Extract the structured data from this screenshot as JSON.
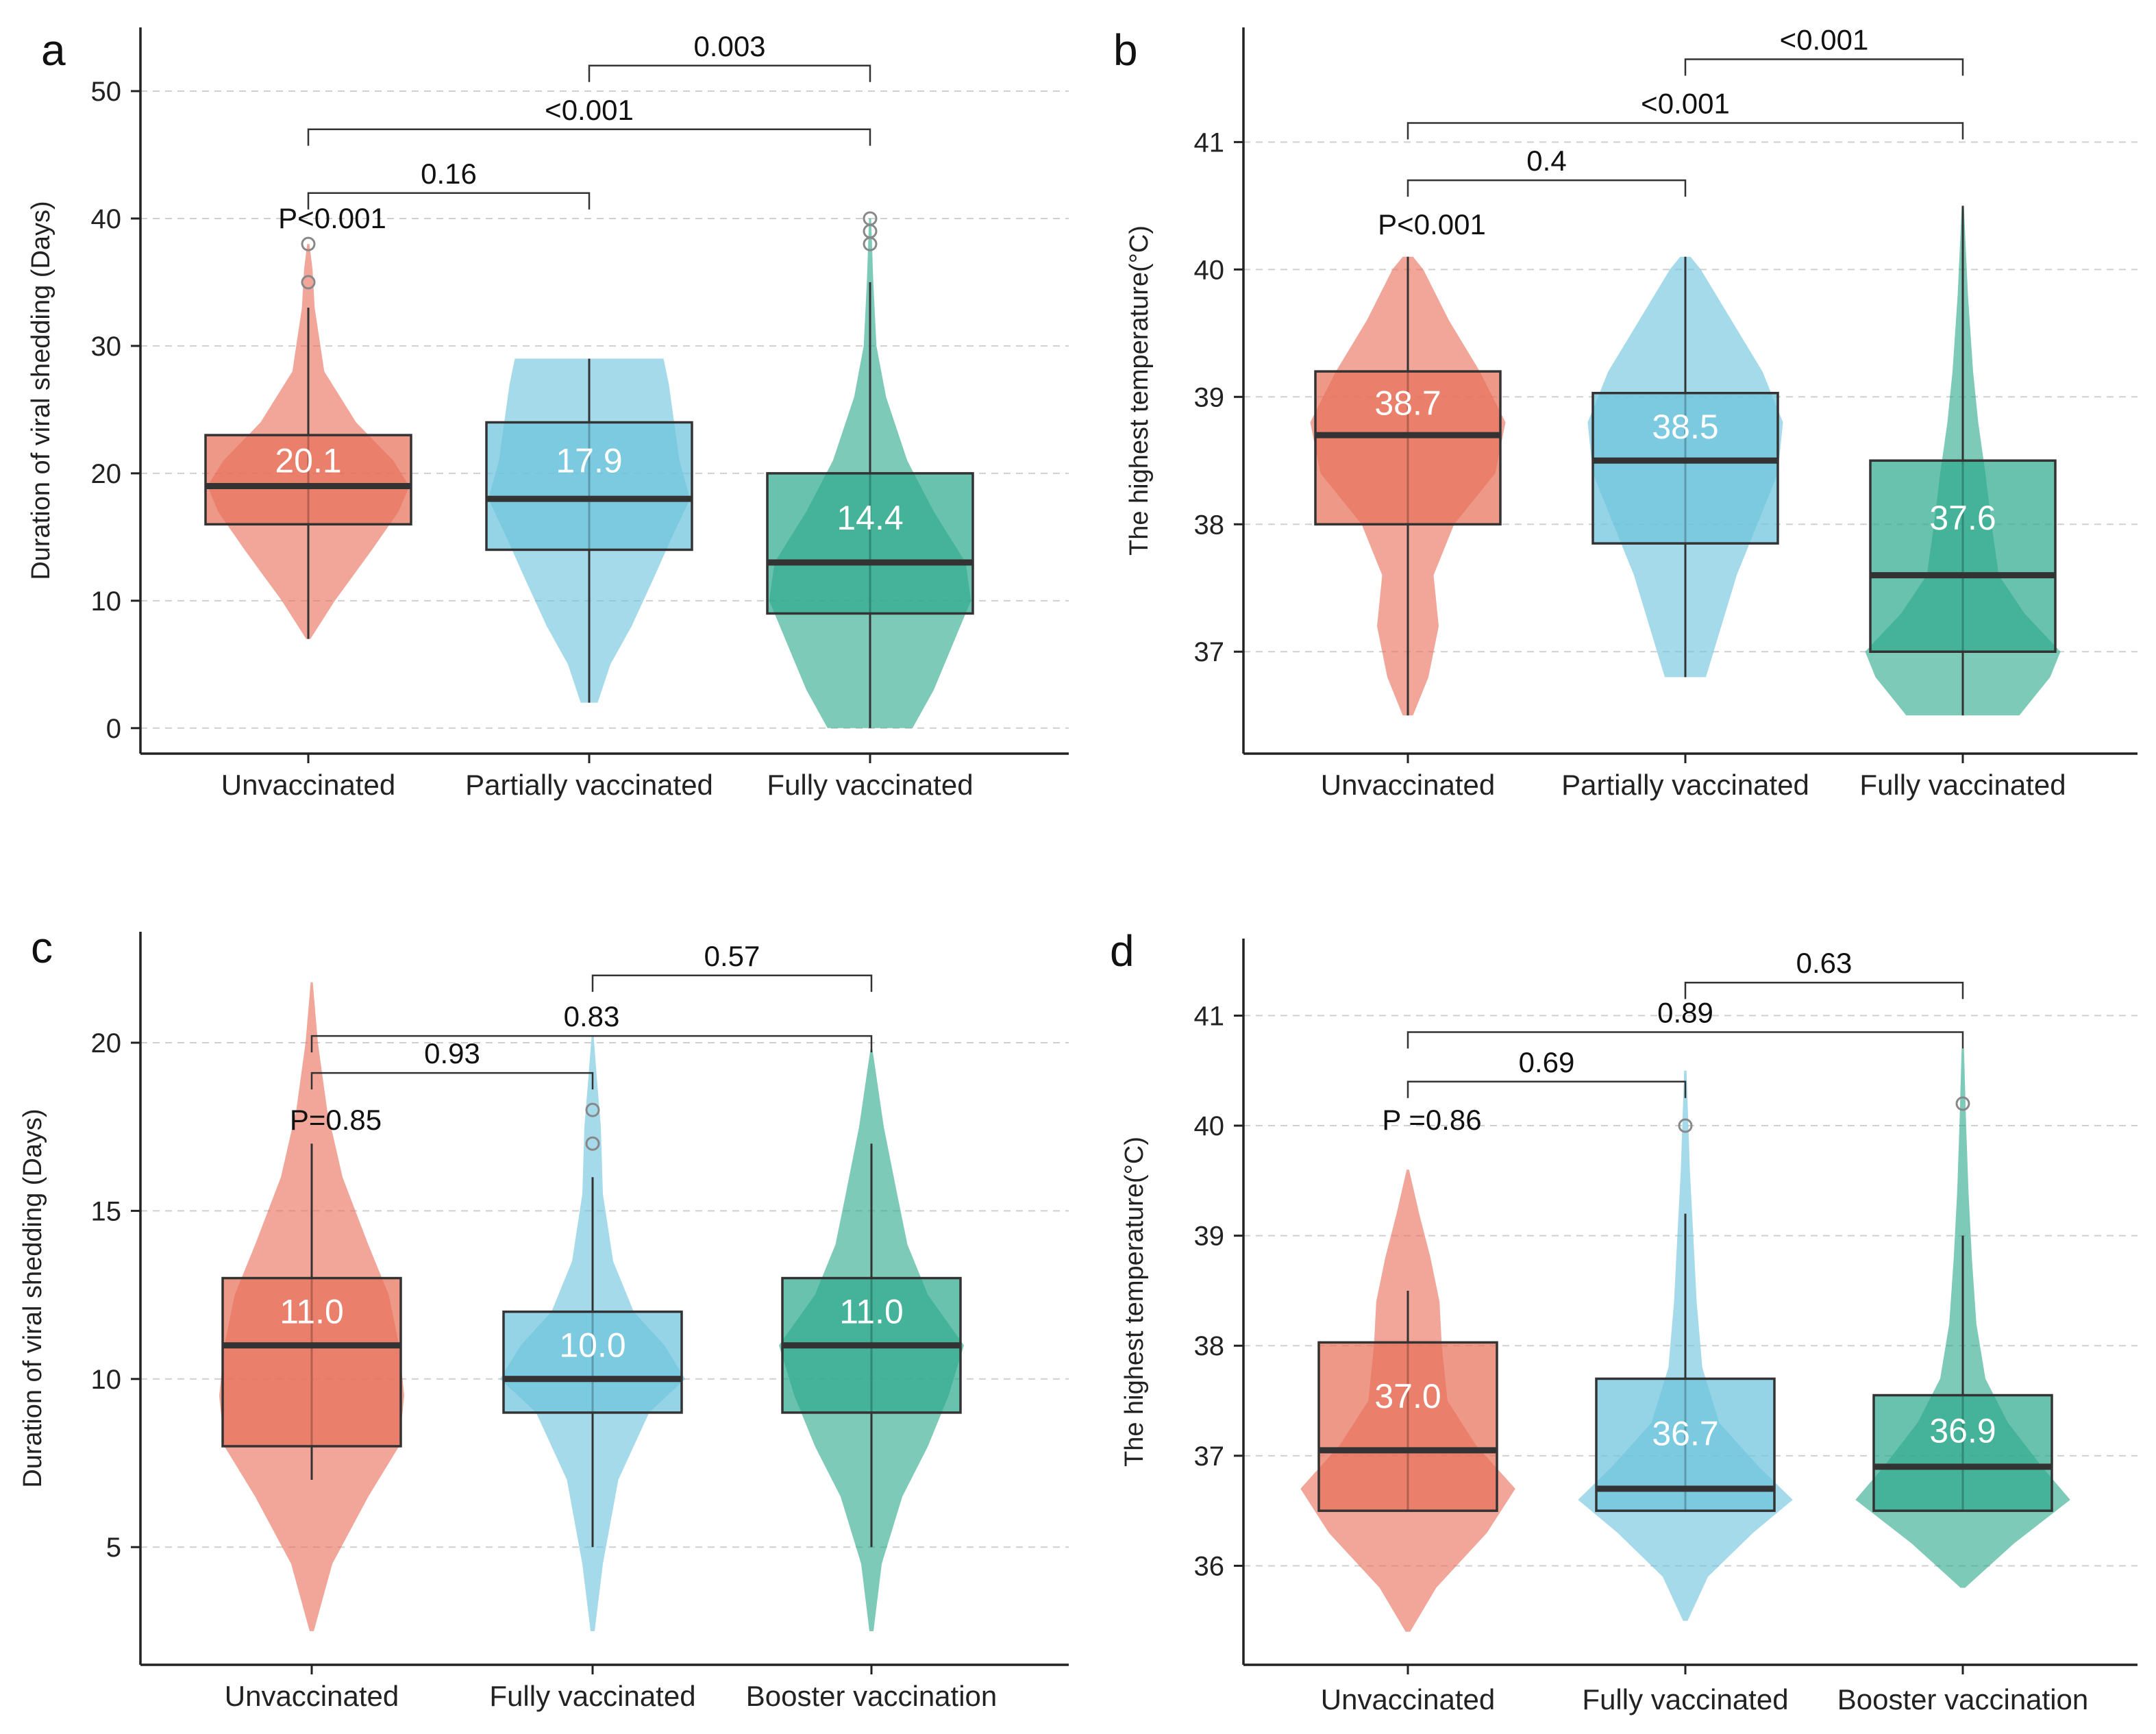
{
  "chart_data": [
    {
      "type": "violin-box",
      "panel": "a",
      "ylabel": "Duration of viral shedding (Days)",
      "ylim": [
        -2,
        55
      ],
      "yticks": [
        0,
        10,
        20,
        30,
        40,
        50
      ],
      "groups": [
        {
          "name": "Unvaccinated",
          "color": "#E8705A",
          "violin_min": 7,
          "violin_max": 38,
          "violin_profile": [
            [
              7,
              0.02
            ],
            [
              10,
              0.25
            ],
            [
              14,
              0.6
            ],
            [
              17,
              0.85
            ],
            [
              19,
              0.95
            ],
            [
              21,
              0.8
            ],
            [
              24,
              0.45
            ],
            [
              28,
              0.15
            ],
            [
              33,
              0.06
            ],
            [
              36,
              0.04
            ],
            [
              38,
              0.01
            ]
          ],
          "whisker_low": 7,
          "q1": 16,
          "median": 19,
          "q3": 23,
          "whisker_high": 33,
          "mean_label": "20.1",
          "outliers": [
            35,
            38
          ]
        },
        {
          "name": "Partially vaccinated",
          "color": "#6CC3DD",
          "violin_min": 2,
          "violin_max": 29,
          "violin_profile": [
            [
              2,
              0.08
            ],
            [
              5,
              0.2
            ],
            [
              8,
              0.4
            ],
            [
              12,
              0.62
            ],
            [
              15,
              0.78
            ],
            [
              18,
              0.95
            ],
            [
              21,
              0.85
            ],
            [
              24,
              0.8
            ],
            [
              27,
              0.75
            ],
            [
              29,
              0.7
            ]
          ],
          "whisker_low": 2,
          "q1": 14,
          "median": 18,
          "q3": 24,
          "whisker_high": 29,
          "mean_label": "17.9",
          "outliers": []
        },
        {
          "name": "Fully vaccinated",
          "color": "#2EAA8E",
          "violin_min": 0,
          "violin_max": 40,
          "violin_profile": [
            [
              0,
              0.4
            ],
            [
              3,
              0.6
            ],
            [
              7,
              0.8
            ],
            [
              10,
              0.95
            ],
            [
              13,
              0.9
            ],
            [
              17,
              0.6
            ],
            [
              21,
              0.35
            ],
            [
              26,
              0.15
            ],
            [
              30,
              0.06
            ],
            [
              35,
              0.03
            ],
            [
              40,
              0.01
            ]
          ],
          "whisker_low": 0,
          "q1": 9,
          "median": 13,
          "q3": 20,
          "whisker_high": 35,
          "mean_label": "14.4",
          "outliers": [
            38,
            39,
            40
          ]
        }
      ],
      "comparisons": [
        {
          "from": 0,
          "to": 2,
          "y": 47,
          "label": "<0.001"
        },
        {
          "from": 0,
          "to": 1,
          "y": 42,
          "label": "0.16"
        },
        {
          "from": 1,
          "to": 2,
          "y": 52,
          "label": "0.003"
        }
      ],
      "overall_p": {
        "label": "P<0.001",
        "group": 0,
        "y": 40
      }
    },
    {
      "type": "violin-box",
      "panel": "b",
      "ylabel": "The highest temperature(°C)",
      "ylim": [
        36.2,
        41.9
      ],
      "yticks": [
        37,
        38,
        39,
        40,
        41
      ],
      "groups": [
        {
          "name": "Unvaccinated",
          "color": "#E8705A",
          "violin_min": 36.5,
          "violin_max": 40.1,
          "violin_profile": [
            [
              36.5,
              0.05
            ],
            [
              36.8,
              0.2
            ],
            [
              37.2,
              0.3
            ],
            [
              37.6,
              0.25
            ],
            [
              38.0,
              0.45
            ],
            [
              38.4,
              0.85
            ],
            [
              38.8,
              0.95
            ],
            [
              39.2,
              0.7
            ],
            [
              39.6,
              0.4
            ],
            [
              40.0,
              0.15
            ],
            [
              40.1,
              0.05
            ]
          ],
          "whisker_low": 36.5,
          "q1": 38.0,
          "median": 38.7,
          "q3": 39.2,
          "whisker_high": 40.1,
          "mean_label": "38.7",
          "outliers": []
        },
        {
          "name": "Partially vaccinated",
          "color": "#6CC3DD",
          "violin_min": 36.8,
          "violin_max": 40.1,
          "violin_profile": [
            [
              36.8,
              0.2
            ],
            [
              37.2,
              0.35
            ],
            [
              37.6,
              0.5
            ],
            [
              38.0,
              0.7
            ],
            [
              38.4,
              0.9
            ],
            [
              38.8,
              0.95
            ],
            [
              39.2,
              0.75
            ],
            [
              39.6,
              0.45
            ],
            [
              40.0,
              0.15
            ],
            [
              40.1,
              0.05
            ]
          ],
          "whisker_low": 36.8,
          "q1": 37.85,
          "median": 38.5,
          "q3": 39.03,
          "whisker_high": 40.1,
          "mean_label": "38.5",
          "outliers": []
        },
        {
          "name": "Fully vaccinated",
          "color": "#2EAA8E",
          "violin_min": 36.5,
          "violin_max": 40.5,
          "violin_profile": [
            [
              36.5,
              0.55
            ],
            [
              36.8,
              0.85
            ],
            [
              37.0,
              0.95
            ],
            [
              37.3,
              0.6
            ],
            [
              37.6,
              0.35
            ],
            [
              38.0,
              0.28
            ],
            [
              38.4,
              0.22
            ],
            [
              38.8,
              0.15
            ],
            [
              39.2,
              0.1
            ],
            [
              39.8,
              0.05
            ],
            [
              40.5,
              0.01
            ]
          ],
          "whisker_low": 36.5,
          "q1": 37.0,
          "median": 37.6,
          "q3": 38.5,
          "whisker_high": 40.5,
          "mean_label": "37.6",
          "outliers": []
        }
      ],
      "comparisons": [
        {
          "from": 0,
          "to": 2,
          "y": 41.15,
          "label": "<0.001"
        },
        {
          "from": 0,
          "to": 1,
          "y": 40.7,
          "label": "0.4"
        },
        {
          "from": 1,
          "to": 2,
          "y": 41.65,
          "label": "<0.001"
        }
      ],
      "overall_p": {
        "label": "P<0.001",
        "group": 0,
        "y": 40.35
      }
    },
    {
      "type": "violin-box",
      "panel": "c",
      "ylabel": "Duration of viral shedding (Days)",
      "ylim": [
        1.5,
        23.3
      ],
      "yticks": [
        5,
        10,
        15,
        20
      ],
      "groups": [
        {
          "name": "Unvaccinated",
          "color": "#E8705A",
          "violin_min": 2.5,
          "violin_max": 21.8,
          "violin_profile": [
            [
              2.5,
              0.02
            ],
            [
              4.5,
              0.2
            ],
            [
              6.5,
              0.55
            ],
            [
              8,
              0.85
            ],
            [
              9.5,
              0.9
            ],
            [
              11,
              0.85
            ],
            [
              12.5,
              0.75
            ],
            [
              14,
              0.55
            ],
            [
              16,
              0.3
            ],
            [
              18,
              0.15
            ],
            [
              20,
              0.06
            ],
            [
              21.8,
              0.01
            ]
          ],
          "whisker_low": 7,
          "q1": 8,
          "median": 11,
          "q3": 13,
          "whisker_high": 17,
          "mean_label": "11.0",
          "outliers": []
        },
        {
          "name": "Fully vaccinated",
          "color": "#6CC3DD",
          "violin_min": 2.5,
          "violin_max": 20.2,
          "violin_profile": [
            [
              2.5,
              0.02
            ],
            [
              4.5,
              0.1
            ],
            [
              7,
              0.25
            ],
            [
              9,
              0.55
            ],
            [
              10,
              0.9
            ],
            [
              11,
              0.7
            ],
            [
              12,
              0.4
            ],
            [
              13.5,
              0.2
            ],
            [
              15.5,
              0.1
            ],
            [
              17.5,
              0.08
            ],
            [
              19,
              0.04
            ],
            [
              20.2,
              0.01
            ]
          ],
          "whisker_low": 5,
          "q1": 9,
          "median": 10,
          "q3": 12,
          "whisker_high": 16,
          "mean_label": "10.0",
          "outliers": [
            17,
            18
          ]
        },
        {
          "name": "Booster vaccination",
          "color": "#2EAA8E",
          "violin_min": 2.5,
          "violin_max": 19.8,
          "violin_profile": [
            [
              2.5,
              0.02
            ],
            [
              4.5,
              0.1
            ],
            [
              6.5,
              0.3
            ],
            [
              8,
              0.55
            ],
            [
              9.5,
              0.75
            ],
            [
              11,
              0.9
            ],
            [
              12.5,
              0.55
            ],
            [
              14,
              0.35
            ],
            [
              15.5,
              0.25
            ],
            [
              17.5,
              0.12
            ],
            [
              19.8,
              0.01
            ]
          ],
          "whisker_low": 5,
          "q1": 9,
          "median": 11,
          "q3": 13,
          "whisker_high": 17,
          "mean_label": "11.0",
          "outliers": []
        }
      ],
      "comparisons": [
        {
          "from": 0,
          "to": 2,
          "y": 20.2,
          "label": "0.83"
        },
        {
          "from": 0,
          "to": 1,
          "y": 19.1,
          "label": "0.93"
        },
        {
          "from": 1,
          "to": 2,
          "y": 22.0,
          "label": "0.57"
        }
      ],
      "overall_p": {
        "label": "P=0.85",
        "group": 0,
        "y": 17.7
      }
    },
    {
      "type": "violin-box",
      "panel": "d",
      "ylabel": "The highest temperature(°C)",
      "ylim": [
        35.1,
        41.7
      ],
      "yticks": [
        36,
        37,
        38,
        39,
        40,
        41
      ],
      "groups": [
        {
          "name": "Unvaccinated",
          "color": "#E8705A",
          "violin_min": 35.4,
          "violin_max": 39.6,
          "violin_profile": [
            [
              35.4,
              0.02
            ],
            [
              35.8,
              0.25
            ],
            [
              36.3,
              0.7
            ],
            [
              36.7,
              0.95
            ],
            [
              37.1,
              0.6
            ],
            [
              37.5,
              0.35
            ],
            [
              38.0,
              0.3
            ],
            [
              38.4,
              0.28
            ],
            [
              38.8,
              0.2
            ],
            [
              39.2,
              0.1
            ],
            [
              39.6,
              0.01
            ]
          ],
          "whisker_low": 36.5,
          "q1": 36.5,
          "median": 37.05,
          "q3": 38.03,
          "whisker_high": 38.5,
          "mean_label": "37.0",
          "outliers": []
        },
        {
          "name": "Fully vaccinated",
          "color": "#6CC3DD",
          "violin_min": 35.5,
          "violin_max": 40.5,
          "violin_profile": [
            [
              35.5,
              0.02
            ],
            [
              35.9,
              0.2
            ],
            [
              36.3,
              0.6
            ],
            [
              36.6,
              0.95
            ],
            [
              36.9,
              0.65
            ],
            [
              37.3,
              0.3
            ],
            [
              37.8,
              0.15
            ],
            [
              38.4,
              0.1
            ],
            [
              39.0,
              0.07
            ],
            [
              39.6,
              0.04
            ],
            [
              40.5,
              0.01
            ]
          ],
          "whisker_low": 36.5,
          "q1": 36.5,
          "median": 36.7,
          "q3": 37.7,
          "whisker_high": 39.2,
          "mean_label": "36.7",
          "outliers": [
            40.0
          ]
        },
        {
          "name": "Booster vaccination",
          "color": "#2EAA8E",
          "violin_min": 35.8,
          "violin_max": 40.7,
          "violin_profile": [
            [
              35.8,
              0.02
            ],
            [
              36.2,
              0.45
            ],
            [
              36.6,
              0.95
            ],
            [
              36.9,
              0.7
            ],
            [
              37.3,
              0.4
            ],
            [
              37.7,
              0.2
            ],
            [
              38.2,
              0.12
            ],
            [
              38.8,
              0.08
            ],
            [
              39.4,
              0.05
            ],
            [
              40.0,
              0.03
            ],
            [
              40.7,
              0.01
            ]
          ],
          "whisker_low": 36.5,
          "q1": 36.5,
          "median": 36.9,
          "q3": 37.55,
          "whisker_high": 39.0,
          "mean_label": "36.9",
          "outliers": [
            40.2
          ]
        }
      ],
      "comparisons": [
        {
          "from": 0,
          "to": 2,
          "y": 40.85,
          "label": "0.89"
        },
        {
          "from": 0,
          "to": 1,
          "y": 40.4,
          "label": "0.69"
        },
        {
          "from": 1,
          "to": 2,
          "y": 41.3,
          "label": "0.63"
        }
      ],
      "overall_p": {
        "label": "P =0.86",
        "group": 0,
        "y": 40.05
      }
    }
  ]
}
